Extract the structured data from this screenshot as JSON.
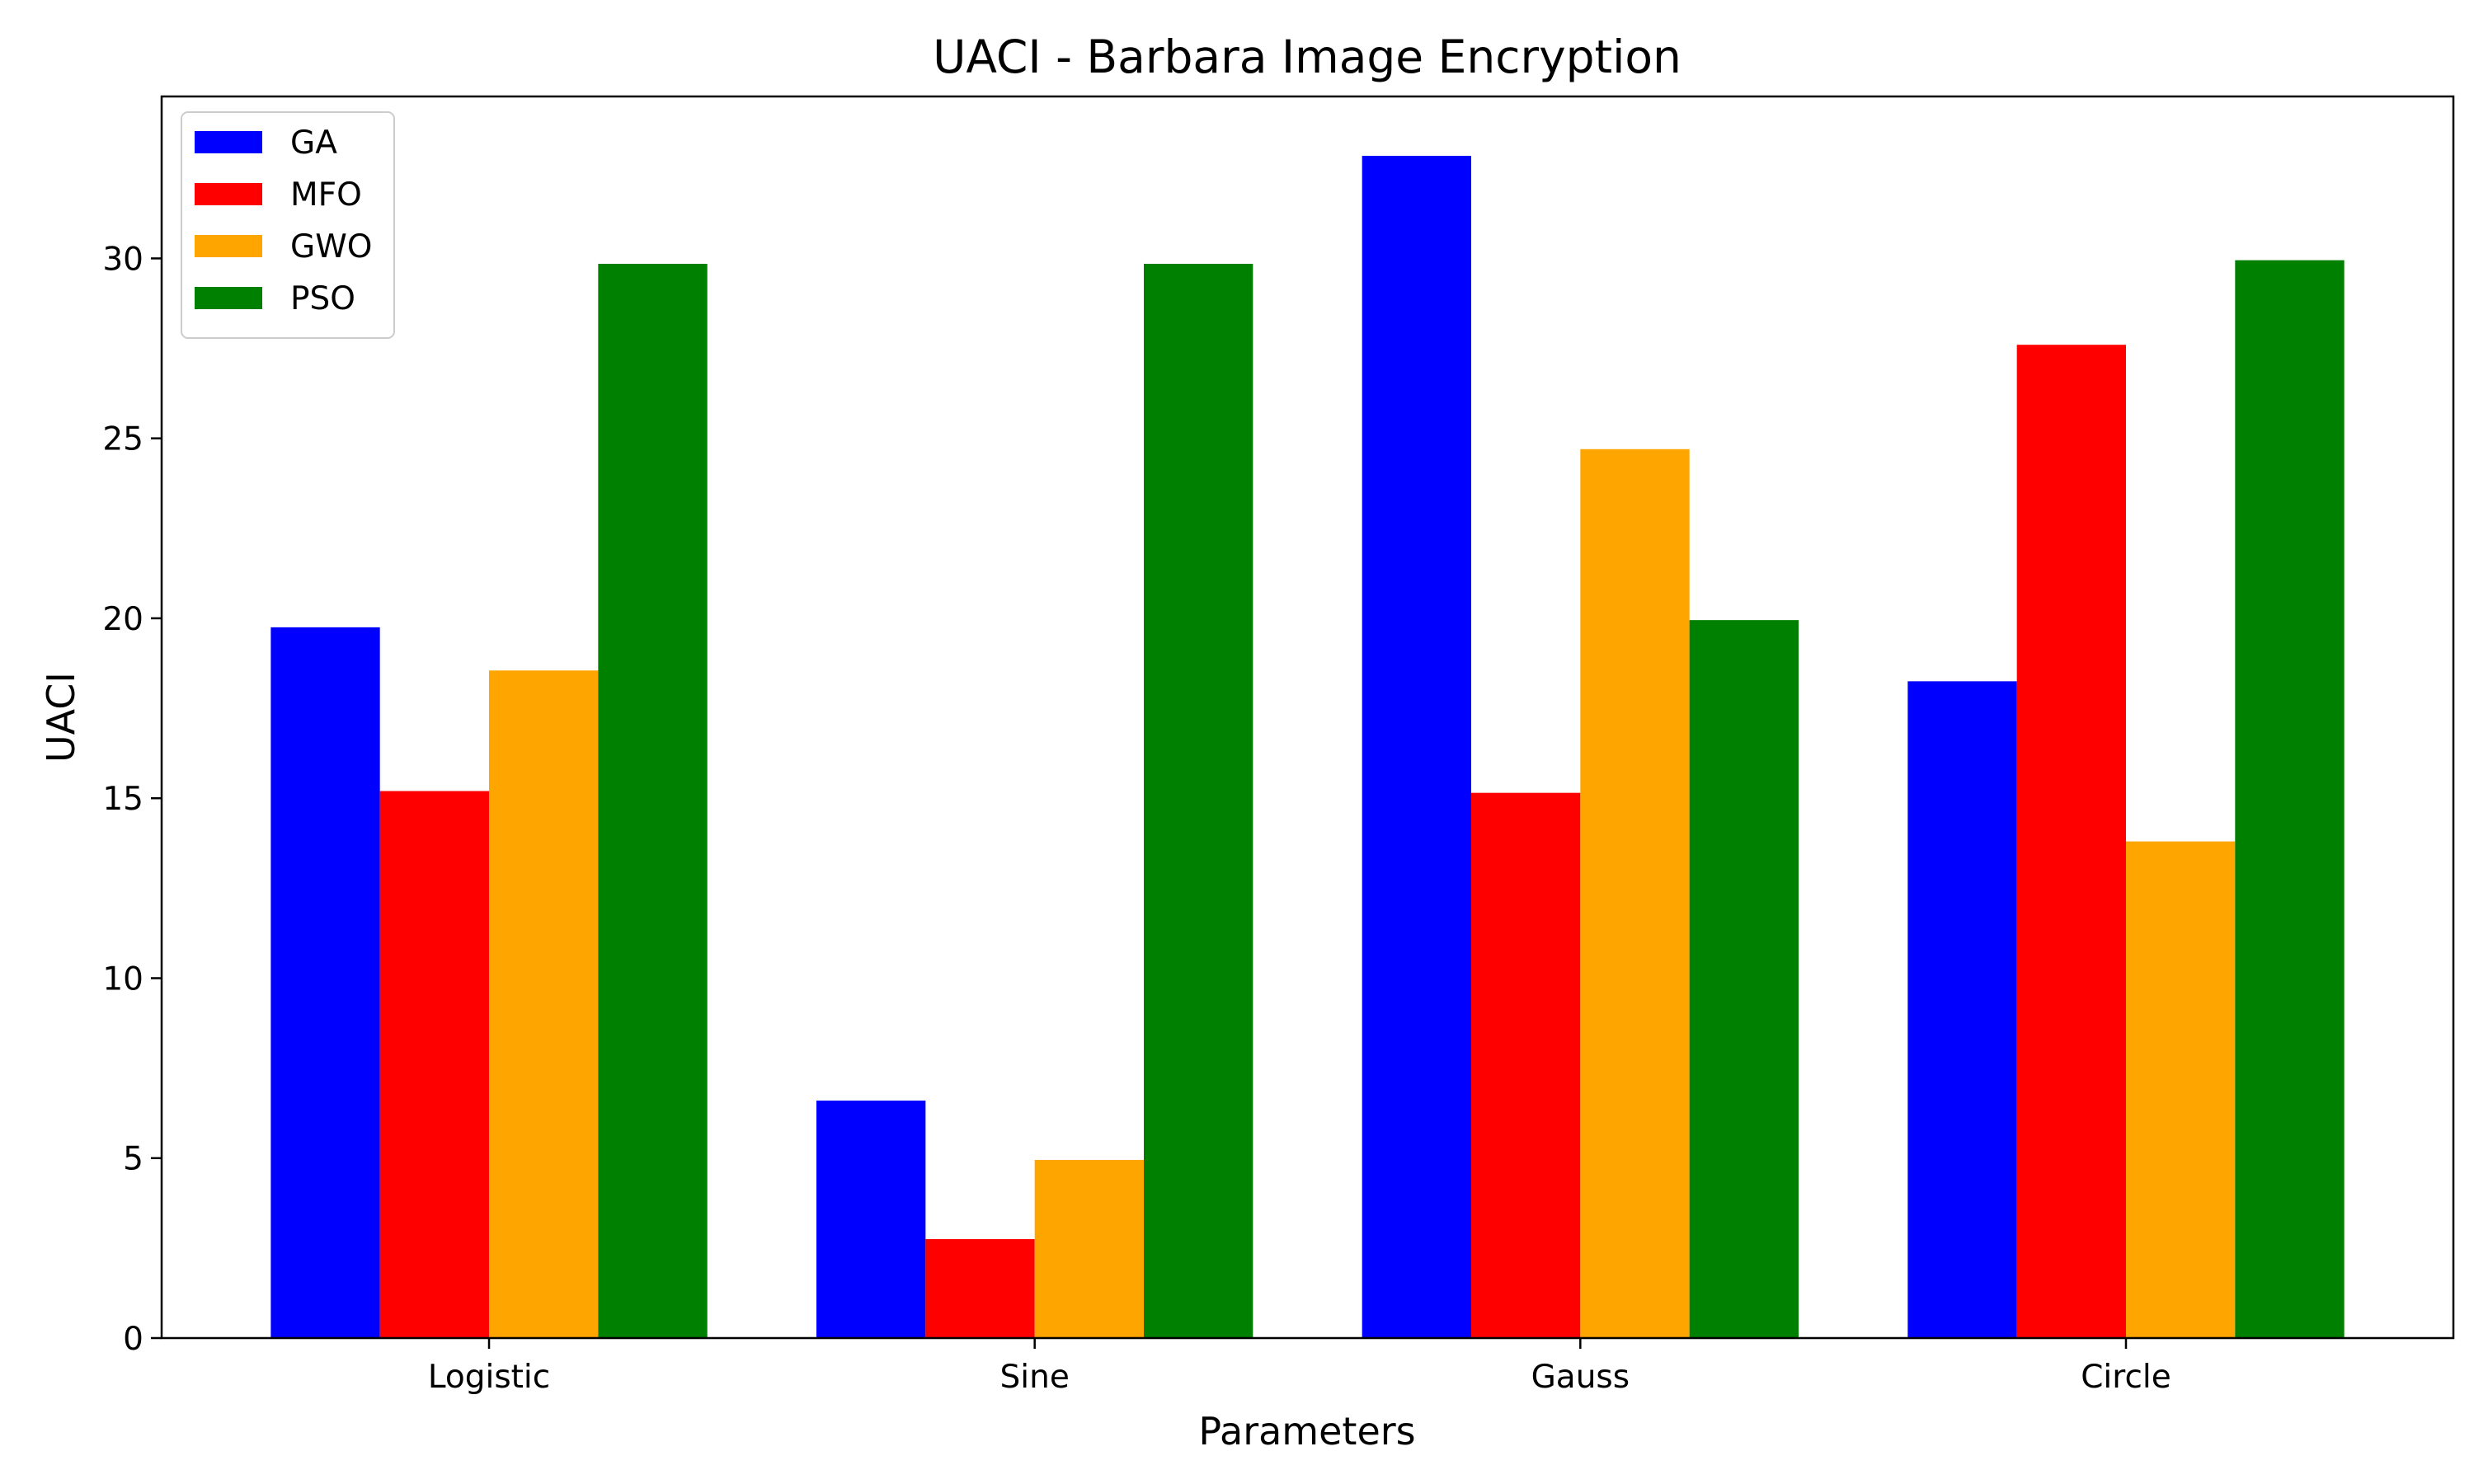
{
  "chart_data": {
    "type": "bar",
    "title": "UACI - Barbara Image Encryption",
    "xlabel": "Parameters",
    "ylabel": "UACI",
    "categories": [
      "Logistic",
      "Sine",
      "Gauss",
      "Circle"
    ],
    "series": [
      {
        "name": "GA",
        "color": "#0000ff",
        "values": [
          19.75,
          6.6,
          32.85,
          18.25
        ]
      },
      {
        "name": "MFO",
        "color": "#ff0000",
        "values": [
          15.2,
          2.75,
          15.15,
          27.6
        ]
      },
      {
        "name": "GWO",
        "color": "#ffa500",
        "values": [
          18.55,
          4.95,
          24.7,
          13.8
        ]
      },
      {
        "name": "PSO",
        "color": "#008000",
        "values": [
          29.85,
          29.85,
          19.95,
          29.95
        ]
      }
    ],
    "ylim": [
      0,
      34.5
    ],
    "yticks": [
      0,
      5,
      10,
      15,
      20,
      25,
      30
    ],
    "grid": false,
    "legend": {
      "position": "top-left"
    }
  }
}
